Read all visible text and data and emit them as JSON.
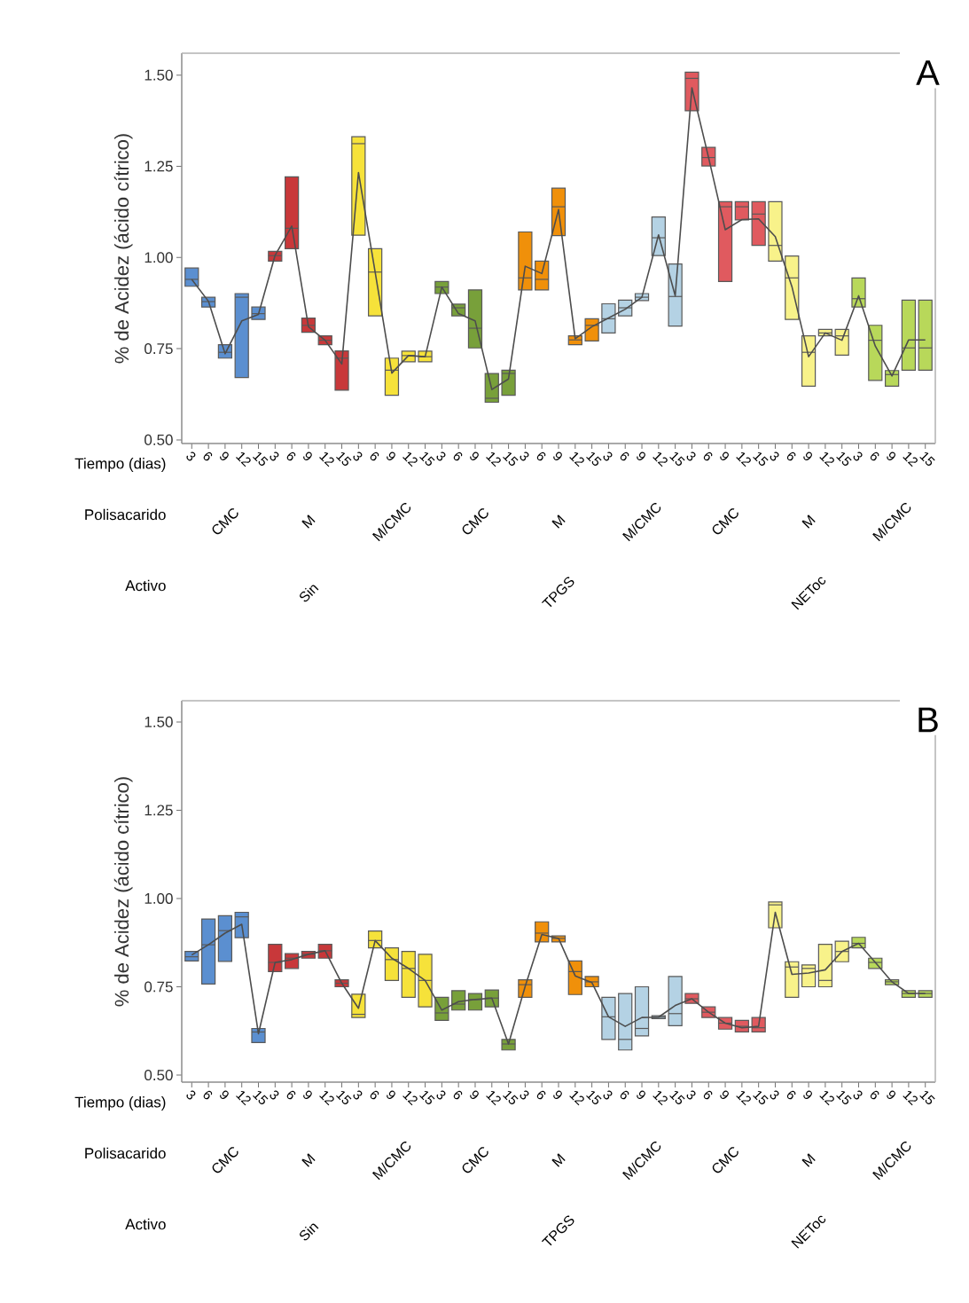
{
  "chart_data": [
    {
      "type": "box",
      "title": "A",
      "xlabel": "Tiempo (dias)",
      "ylabel": "% de Acidez (ácido cítrico)",
      "categories": [
        "3",
        "6",
        "9",
        "12",
        "15",
        "3",
        "6",
        "9",
        "12",
        "15",
        "3",
        "6",
        "9",
        "12",
        "15",
        "3",
        "6",
        "9",
        "12",
        "15",
        "3",
        "6",
        "9",
        "12",
        "15",
        "3",
        "6",
        "9",
        "12",
        "15",
        "3",
        "6",
        "9",
        "12",
        "15",
        "3",
        "6",
        "9",
        "12",
        "15",
        "3",
        "6",
        "9",
        "12",
        "15"
      ],
      "ylim": [
        0.49,
        1.56
      ],
      "yticks": [
        {
          "value": 0.5,
          "label": "0.50"
        },
        {
          "value": 0.75,
          "label": "0.75"
        },
        {
          "value": 1.0,
          "label": "1.00"
        },
        {
          "value": 1.25,
          "label": "1.25"
        },
        {
          "value": 1.5,
          "label": "1.50"
        }
      ],
      "colors": [
        "#5b8fd0",
        "#5b8fd0",
        "#5b8fd0",
        "#5b8fd0",
        "#5b8fd0",
        "#c8383a",
        "#c8383a",
        "#c8383a",
        "#c8383a",
        "#c8383a",
        "#f6e23a",
        "#f6e23a",
        "#f6e23a",
        "#f6e23a",
        "#f6e23a",
        "#78a03a",
        "#78a03a",
        "#78a03a",
        "#78a03a",
        "#78a03a",
        "#f0900a",
        "#f0900a",
        "#f0900a",
        "#f0900a",
        "#f0900a",
        "#b4d2e4",
        "#b4d2e4",
        "#b4d2e4",
        "#b4d2e4",
        "#b4d2e4",
        "#e05a5f",
        "#e05a5f",
        "#e05a5f",
        "#e05a5f",
        "#e05a5f",
        "#f8f28a",
        "#f8f28a",
        "#f8f28a",
        "#f8f28a",
        "#f8f28a",
        "#b8d85a",
        "#b8d85a",
        "#b8d85a",
        "#b8d85a",
        "#b8d85a"
      ],
      "boxes": [
        {
          "low": 0.921,
          "q1": 0.921,
          "median": 0.94,
          "q3": 0.971,
          "high": 0.971
        },
        {
          "low": 0.864,
          "q1": 0.864,
          "median": 0.879,
          "q3": 0.891,
          "high": 0.891
        },
        {
          "low": 0.724,
          "q1": 0.724,
          "median": 0.74,
          "q3": 0.761,
          "high": 0.761
        },
        {
          "low": 0.671,
          "q1": 0.671,
          "median": 0.891,
          "q3": 0.901,
          "high": 0.901
        },
        {
          "low": 0.83,
          "q1": 0.83,
          "median": 0.846,
          "q3": 0.864,
          "high": 0.864
        },
        {
          "low": 0.99,
          "q1": 0.99,
          "median": 1.005,
          "q3": 1.017,
          "high": 1.017
        },
        {
          "low": 1.024,
          "q1": 1.024,
          "median": 1.08,
          "q3": 1.221,
          "high": 1.221
        },
        {
          "low": 0.795,
          "q1": 0.795,
          "median": 0.814,
          "q3": 0.834,
          "high": 0.834
        },
        {
          "low": 0.761,
          "q1": 0.761,
          "median": 0.773,
          "q3": 0.785,
          "high": 0.785
        },
        {
          "low": 0.636,
          "q1": 0.636,
          "median": 0.724,
          "q3": 0.744,
          "high": 0.744
        },
        {
          "low": 1.061,
          "q1": 1.061,
          "median": 1.312,
          "q3": 1.331,
          "high": 1.331
        },
        {
          "low": 0.84,
          "q1": 0.84,
          "median": 0.96,
          "q3": 1.024,
          "high": 1.024
        },
        {
          "low": 0.622,
          "q1": 0.622,
          "median": 0.691,
          "q3": 0.724,
          "high": 0.724
        },
        {
          "low": 0.714,
          "q1": 0.714,
          "median": 0.731,
          "q3": 0.743,
          "high": 0.743
        },
        {
          "low": 0.714,
          "q1": 0.714,
          "median": 0.728,
          "q3": 0.743,
          "high": 0.743
        },
        {
          "low": 0.901,
          "q1": 0.901,
          "median": 0.919,
          "q3": 0.934,
          "high": 0.934
        },
        {
          "low": 0.84,
          "q1": 0.84,
          "median": 0.862,
          "q3": 0.872,
          "high": 0.872
        },
        {
          "low": 0.752,
          "q1": 0.752,
          "median": 0.806,
          "q3": 0.911,
          "high": 0.911
        },
        {
          "low": 0.603,
          "q1": 0.603,
          "median": 0.614,
          "q3": 0.682,
          "high": 0.682
        },
        {
          "low": 0.622,
          "q1": 0.622,
          "median": 0.682,
          "q3": 0.691,
          "high": 0.691
        },
        {
          "low": 0.911,
          "q1": 0.911,
          "median": 0.944,
          "q3": 1.07,
          "high": 1.07
        },
        {
          "low": 0.911,
          "q1": 0.911,
          "median": 0.94,
          "q3": 0.99,
          "high": 0.99
        },
        {
          "low": 1.06,
          "q1": 1.06,
          "median": 1.139,
          "q3": 1.19,
          "high": 1.19
        },
        {
          "low": 0.761,
          "q1": 0.761,
          "median": 0.774,
          "q3": 0.785,
          "high": 0.785
        },
        {
          "low": 0.771,
          "q1": 0.771,
          "median": 0.814,
          "q3": 0.832,
          "high": 0.832
        },
        {
          "low": 0.793,
          "q1": 0.793,
          "median": 0.832,
          "q3": 0.873,
          "high": 0.873
        },
        {
          "low": 0.84,
          "q1": 0.84,
          "median": 0.862,
          "q3": 0.883,
          "high": 0.883
        },
        {
          "low": 0.882,
          "q1": 0.882,
          "median": 0.891,
          "q3": 0.901,
          "high": 0.901
        },
        {
          "low": 1.005,
          "q1": 1.005,
          "median": 1.054,
          "q3": 1.111,
          "high": 1.111
        },
        {
          "low": 0.812,
          "q1": 0.812,
          "median": 0.893,
          "q3": 0.982,
          "high": 0.982
        },
        {
          "low": 1.402,
          "q1": 1.402,
          "median": 1.491,
          "q3": 1.508,
          "high": 1.508
        },
        {
          "low": 1.251,
          "q1": 1.251,
          "median": 1.274,
          "q3": 1.302,
          "high": 1.302
        },
        {
          "low": 0.934,
          "q1": 0.934,
          "median": 1.139,
          "q3": 1.153,
          "high": 1.153
        },
        {
          "low": 1.103,
          "q1": 1.103,
          "median": 1.139,
          "q3": 1.153,
          "high": 1.153
        },
        {
          "low": 1.033,
          "q1": 1.033,
          "median": 1.119,
          "q3": 1.153,
          "high": 1.153
        },
        {
          "low": 0.99,
          "q1": 0.99,
          "median": 1.033,
          "q3": 1.153,
          "high": 1.153
        },
        {
          "low": 0.83,
          "q1": 0.83,
          "median": 0.944,
          "q3": 1.004,
          "high": 1.004
        },
        {
          "low": 0.647,
          "q1": 0.647,
          "median": 0.74,
          "q3": 0.785,
          "high": 0.785
        },
        {
          "low": 0.785,
          "q1": 0.785,
          "median": 0.793,
          "q3": 0.803,
          "high": 0.803
        },
        {
          "low": 0.732,
          "q1": 0.732,
          "median": 0.785,
          "q3": 0.803,
          "high": 0.803
        },
        {
          "low": 0.864,
          "q1": 0.864,
          "median": 0.887,
          "q3": 0.944,
          "high": 0.944
        },
        {
          "low": 0.663,
          "q1": 0.663,
          "median": 0.773,
          "q3": 0.814,
          "high": 0.814
        },
        {
          "low": 0.647,
          "q1": 0.647,
          "median": 0.679,
          "q3": 0.69,
          "high": 0.69
        },
        {
          "low": 0.691,
          "q1": 0.691,
          "median": 0.752,
          "q3": 0.883,
          "high": 0.883
        },
        {
          "low": 0.691,
          "q1": 0.691,
          "median": 0.752,
          "q3": 0.883,
          "high": 0.883
        }
      ],
      "series": [
        {
          "type": "line",
          "color": "#4d4d4d",
          "values": [
            0.94,
            0.88,
            0.736,
            0.826,
            0.844,
            1.006,
            1.086,
            0.81,
            0.773,
            0.708,
            1.233,
            0.96,
            0.683,
            0.731,
            0.728,
            0.919,
            0.846,
            0.826,
            0.638,
            0.667,
            0.976,
            0.956,
            1.131,
            0.777,
            0.81,
            0.834,
            0.858,
            0.891,
            1.062,
            0.895,
            1.465,
            1.274,
            1.076,
            1.104,
            1.106,
            1.057,
            0.92,
            0.728,
            0.793,
            0.773,
            0.895,
            0.757,
            0.675,
            0.774,
            0.774
          ]
        }
      ],
      "annotations": [
        "Polisacarido",
        "CMC",
        "M",
        "M/CMC",
        "CMC",
        "M",
        "M/CMC",
        "CMC",
        "M",
        "M/CMC",
        "Activo",
        "Sin",
        "TPGS",
        "NEToc"
      ]
    },
    {
      "type": "box",
      "title": "B",
      "xlabel": "Tiempo (dias)",
      "ylabel": "% de Acidez (ácido cítrico)",
      "categories": [
        "3",
        "6",
        "9",
        "12",
        "15",
        "3",
        "6",
        "9",
        "12",
        "15",
        "3",
        "6",
        "9",
        "12",
        "15",
        "3",
        "6",
        "9",
        "12",
        "15",
        "3",
        "6",
        "9",
        "12",
        "15",
        "3",
        "6",
        "9",
        "12",
        "15",
        "3",
        "6",
        "9",
        "12",
        "15",
        "3",
        "6",
        "9",
        "12",
        "15",
        "3",
        "6",
        "9",
        "12",
        "15"
      ],
      "ylim": [
        0.48,
        1.56
      ],
      "yticks": [
        {
          "value": 0.5,
          "label": "0.50"
        },
        {
          "value": 0.75,
          "label": "0.75"
        },
        {
          "value": 1.0,
          "label": "1.00"
        },
        {
          "value": 1.25,
          "label": "1.25"
        },
        {
          "value": 1.5,
          "label": "1.50"
        }
      ],
      "colors": [
        "#5b8fd0",
        "#5b8fd0",
        "#5b8fd0",
        "#5b8fd0",
        "#5b8fd0",
        "#c8383a",
        "#c8383a",
        "#c8383a",
        "#c8383a",
        "#c8383a",
        "#f6e23a",
        "#f6e23a",
        "#f6e23a",
        "#f6e23a",
        "#f6e23a",
        "#78a03a",
        "#78a03a",
        "#78a03a",
        "#78a03a",
        "#78a03a",
        "#f0900a",
        "#f0900a",
        "#f0900a",
        "#f0900a",
        "#f0900a",
        "#b4d2e4",
        "#b4d2e4",
        "#b4d2e4",
        "#b4d2e4",
        "#b4d2e4",
        "#e05a5f",
        "#e05a5f",
        "#e05a5f",
        "#e05a5f",
        "#e05a5f",
        "#f8f28a",
        "#f8f28a",
        "#f8f28a",
        "#f8f28a",
        "#f8f28a",
        "#b8d85a",
        "#b8d85a",
        "#b8d85a",
        "#b8d85a",
        "#b8d85a"
      ],
      "boxes": [
        {
          "low": 0.823,
          "q1": 0.823,
          "median": 0.835,
          "q3": 0.85,
          "high": 0.85
        },
        {
          "low": 0.758,
          "q1": 0.758,
          "median": 0.869,
          "q3": 0.942,
          "high": 0.942
        },
        {
          "low": 0.822,
          "q1": 0.822,
          "median": 0.909,
          "q3": 0.951,
          "high": 0.951
        },
        {
          "low": 0.889,
          "q1": 0.889,
          "median": 0.948,
          "q3": 0.961,
          "high": 0.961
        },
        {
          "low": 0.592,
          "q1": 0.592,
          "median": 0.622,
          "q3": 0.632,
          "high": 0.632
        },
        {
          "low": 0.793,
          "q1": 0.793,
          "median": 0.819,
          "q3": 0.87,
          "high": 0.87
        },
        {
          "low": 0.802,
          "q1": 0.802,
          "median": 0.831,
          "q3": 0.844,
          "high": 0.844
        },
        {
          "low": 0.831,
          "q1": 0.831,
          "median": 0.842,
          "q3": 0.85,
          "high": 0.85
        },
        {
          "low": 0.831,
          "q1": 0.831,
          "median": 0.852,
          "q3": 0.87,
          "high": 0.87
        },
        {
          "low": 0.75,
          "q1": 0.75,
          "median": 0.76,
          "q3": 0.77,
          "high": 0.77
        },
        {
          "low": 0.663,
          "q1": 0.663,
          "median": 0.672,
          "q3": 0.729,
          "high": 0.729
        },
        {
          "low": 0.86,
          "q1": 0.86,
          "median": 0.881,
          "q3": 0.908,
          "high": 0.908
        },
        {
          "low": 0.768,
          "q1": 0.768,
          "median": 0.827,
          "q3": 0.86,
          "high": 0.86
        },
        {
          "low": 0.72,
          "q1": 0.72,
          "median": 0.802,
          "q3": 0.85,
          "high": 0.85
        },
        {
          "low": 0.693,
          "q1": 0.693,
          "median": 0.768,
          "q3": 0.842,
          "high": 0.842
        },
        {
          "low": 0.655,
          "q1": 0.655,
          "median": 0.676,
          "q3": 0.72,
          "high": 0.72
        },
        {
          "low": 0.684,
          "q1": 0.684,
          "median": 0.701,
          "q3": 0.739,
          "high": 0.739
        },
        {
          "low": 0.684,
          "q1": 0.684,
          "median": 0.714,
          "q3": 0.731,
          "high": 0.731
        },
        {
          "low": 0.693,
          "q1": 0.693,
          "median": 0.718,
          "q3": 0.741,
          "high": 0.741
        },
        {
          "low": 0.571,
          "q1": 0.571,
          "median": 0.588,
          "q3": 0.601,
          "high": 0.601
        },
        {
          "low": 0.72,
          "q1": 0.72,
          "median": 0.756,
          "q3": 0.77,
          "high": 0.77
        },
        {
          "low": 0.877,
          "q1": 0.877,
          "median": 0.902,
          "q3": 0.934,
          "high": 0.934
        },
        {
          "low": 0.877,
          "q1": 0.877,
          "median": 0.887,
          "q3": 0.894,
          "high": 0.894
        },
        {
          "low": 0.728,
          "q1": 0.728,
          "median": 0.793,
          "q3": 0.823,
          "high": 0.823
        },
        {
          "low": 0.75,
          "q1": 0.75,
          "median": 0.764,
          "q3": 0.779,
          "high": 0.779
        },
        {
          "low": 0.601,
          "q1": 0.601,
          "median": 0.665,
          "q3": 0.72,
          "high": 0.72
        },
        {
          "low": 0.571,
          "q1": 0.571,
          "median": 0.601,
          "q3": 0.731,
          "high": 0.731
        },
        {
          "low": 0.611,
          "q1": 0.611,
          "median": 0.632,
          "q3": 0.75,
          "high": 0.75
        },
        {
          "low": 0.66,
          "q1": 0.66,
          "median": 0.664,
          "q3": 0.668,
          "high": 0.668
        },
        {
          "low": 0.64,
          "q1": 0.64,
          "median": 0.674,
          "q3": 0.779,
          "high": 0.779
        },
        {
          "low": 0.703,
          "q1": 0.703,
          "median": 0.716,
          "q3": 0.731,
          "high": 0.731
        },
        {
          "low": 0.663,
          "q1": 0.663,
          "median": 0.678,
          "q3": 0.693,
          "high": 0.693
        },
        {
          "low": 0.63,
          "q1": 0.63,
          "median": 0.647,
          "q3": 0.663,
          "high": 0.663
        },
        {
          "low": 0.622,
          "q1": 0.622,
          "median": 0.638,
          "q3": 0.655,
          "high": 0.655
        },
        {
          "low": 0.622,
          "q1": 0.622,
          "median": 0.634,
          "q3": 0.663,
          "high": 0.663
        },
        {
          "low": 0.917,
          "q1": 0.917,
          "median": 0.982,
          "q3": 0.99,
          "high": 0.99
        },
        {
          "low": 0.72,
          "q1": 0.72,
          "median": 0.806,
          "q3": 0.821,
          "high": 0.821
        },
        {
          "low": 0.75,
          "q1": 0.75,
          "median": 0.802,
          "q3": 0.812,
          "high": 0.812
        },
        {
          "low": 0.75,
          "q1": 0.75,
          "median": 0.768,
          "q3": 0.87,
          "high": 0.87
        },
        {
          "low": 0.821,
          "q1": 0.821,
          "median": 0.85,
          "q3": 0.879,
          "high": 0.879
        },
        {
          "low": 0.86,
          "q1": 0.86,
          "median": 0.873,
          "q3": 0.89,
          "high": 0.89
        },
        {
          "low": 0.802,
          "q1": 0.802,
          "median": 0.819,
          "q3": 0.831,
          "high": 0.831
        },
        {
          "low": 0.756,
          "q1": 0.756,
          "median": 0.764,
          "q3": 0.77,
          "high": 0.77
        },
        {
          "low": 0.72,
          "q1": 0.72,
          "median": 0.731,
          "q3": 0.739,
          "high": 0.739
        },
        {
          "low": 0.72,
          "q1": 0.72,
          "median": 0.731,
          "q3": 0.739,
          "high": 0.739
        }
      ],
      "series": [
        {
          "type": "line",
          "color": "#4d4d4d",
          "values": [
            0.84,
            0.869,
            0.902,
            0.927,
            0.617,
            0.819,
            0.827,
            0.842,
            0.852,
            0.76,
            0.689,
            0.881,
            0.831,
            0.802,
            0.768,
            0.684,
            0.708,
            0.714,
            0.718,
            0.588,
            0.751,
            0.898,
            0.887,
            0.781,
            0.762,
            0.665,
            0.638,
            0.663,
            0.664,
            0.697,
            0.716,
            0.678,
            0.647,
            0.634,
            0.638,
            0.961,
            0.785,
            0.789,
            0.798,
            0.85,
            0.873,
            0.819,
            0.764,
            0.731,
            0.731
          ]
        }
      ],
      "annotations": [
        "Polisacarido",
        "CMC",
        "M",
        "M/CMC",
        "CMC",
        "M",
        "M/CMC",
        "CMC",
        "M",
        "M/CMC",
        "Activo",
        "Sin",
        "TPGS",
        "NEToc"
      ]
    }
  ]
}
